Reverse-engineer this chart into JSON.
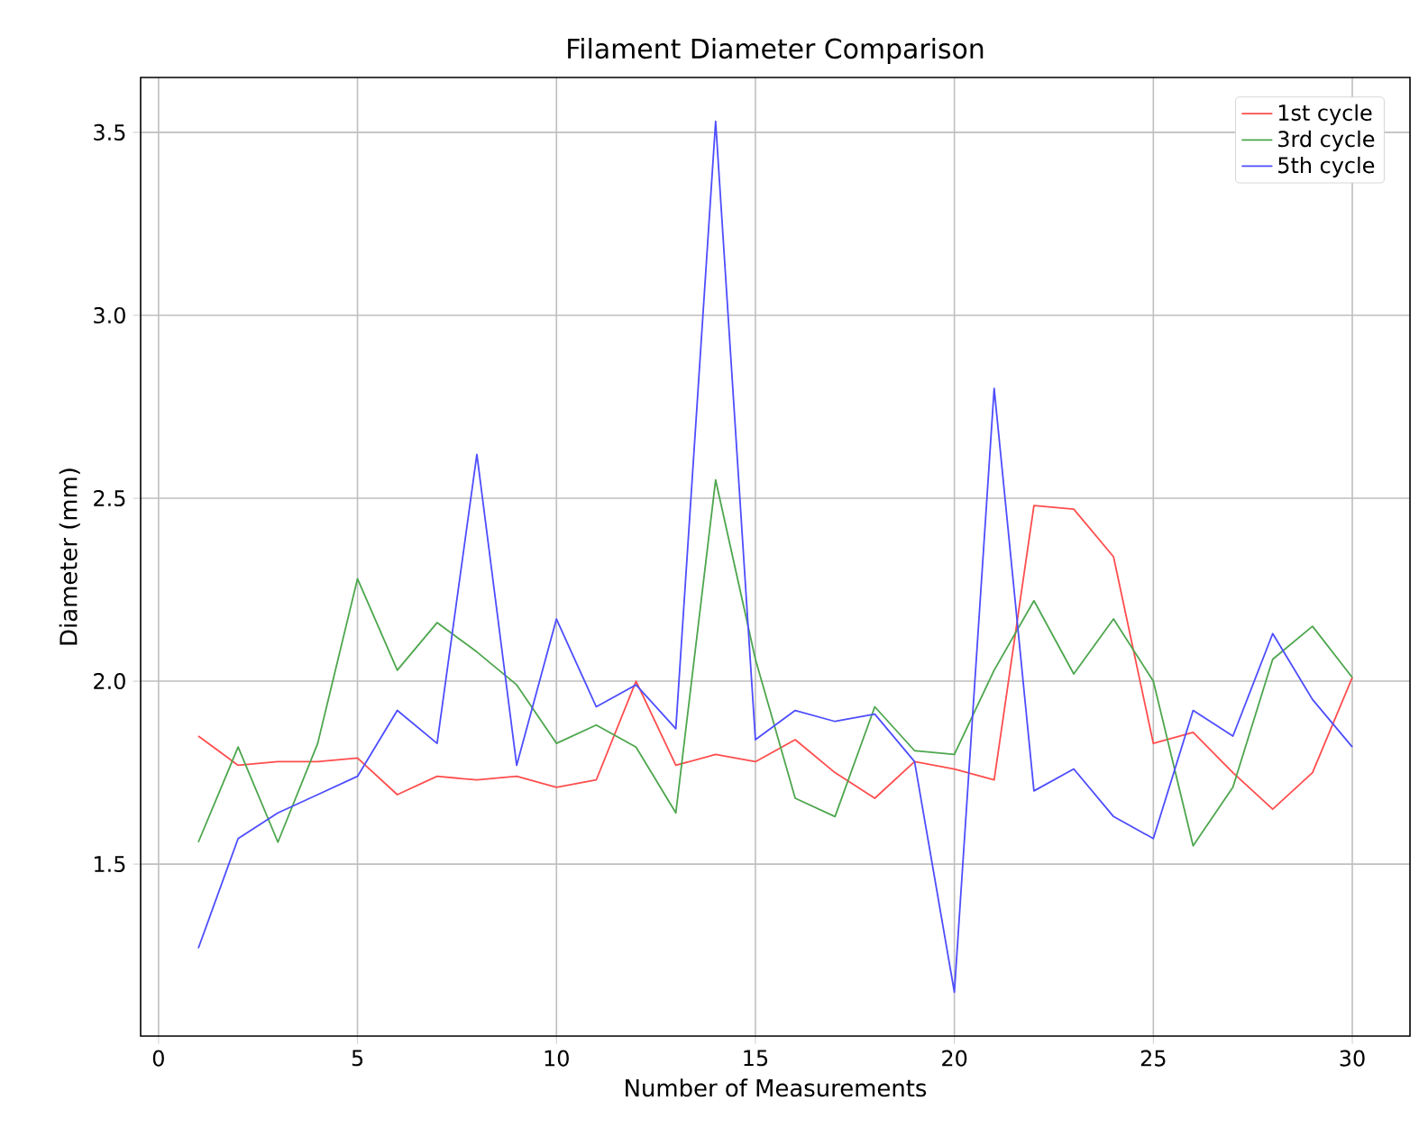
{
  "chart_data": {
    "type": "line",
    "title": "Filament Diameter Comparison",
    "xlabel": "Number of Measurements",
    "ylabel": "Diameter (mm)",
    "x": [
      1,
      2,
      3,
      4,
      5,
      6,
      7,
      8,
      9,
      10,
      11,
      12,
      13,
      14,
      15,
      16,
      17,
      18,
      19,
      20,
      21,
      22,
      23,
      24,
      25,
      26,
      27,
      28,
      29,
      30
    ],
    "series": [
      {
        "name": "1st cycle",
        "color": "#ff4d4d",
        "values": [
          1.85,
          1.77,
          1.78,
          1.78,
          1.79,
          1.69,
          1.74,
          1.73,
          1.74,
          1.71,
          1.73,
          2.0,
          1.77,
          1.8,
          1.78,
          1.84,
          1.75,
          1.68,
          1.78,
          1.76,
          1.73,
          2.48,
          2.47,
          2.34,
          1.83,
          1.86,
          1.75,
          1.65,
          1.75,
          2.01
        ]
      },
      {
        "name": "3rd cycle",
        "color": "#4da64d",
        "values": [
          1.56,
          1.82,
          1.56,
          1.83,
          2.28,
          2.03,
          2.16,
          2.08,
          1.99,
          1.83,
          1.88,
          1.82,
          1.64,
          2.55,
          2.06,
          1.68,
          1.63,
          1.93,
          1.81,
          1.8,
          2.03,
          2.22,
          2.02,
          2.17,
          2.0,
          1.55,
          1.71,
          2.06,
          2.15,
          2.01
        ]
      },
      {
        "name": "5th cycle",
        "color": "#4d4dff",
        "values": [
          1.27,
          1.57,
          1.64,
          1.69,
          1.74,
          1.92,
          1.83,
          2.62,
          1.77,
          2.17,
          1.93,
          1.99,
          1.87,
          3.53,
          1.84,
          1.92,
          1.89,
          1.91,
          1.78,
          1.15,
          2.8,
          1.7,
          1.76,
          1.63,
          1.57,
          1.92,
          1.85,
          2.13,
          1.95,
          1.82
        ]
      }
    ],
    "xlim": [
      -0.45,
      31.45
    ],
    "ylim": [
      1.03,
      3.65
    ],
    "xticks": [
      0,
      5,
      10,
      15,
      20,
      25,
      30
    ],
    "yticks": [
      1.5,
      {
        "value": 2,
        "label": "2.0"
      },
      2.5,
      {
        "value": 3,
        "label": "3.0"
      },
      3.5
    ],
    "grid": true,
    "legend": "top right",
    "marker": "none",
    "line_style": "solid"
  }
}
